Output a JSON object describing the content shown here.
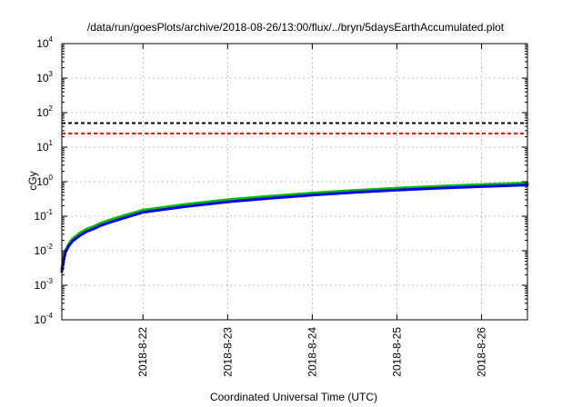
{
  "chart_data": {
    "type": "line",
    "title": "/data/run/goesPlots/archive/2018-08-26/13:00/flux/../bryn/5daysEarthAccumulated.plot",
    "xlabel": "Coordinated Universal Time (UTC)",
    "ylabel": "cGy",
    "x_type": "date",
    "xlim": [
      "2018-08-21T01:00",
      "2018-08-26T13:00"
    ],
    "x_ticks": [
      "2018-8-22",
      "2018-8-23",
      "2018-8-24",
      "2018-8-25",
      "2018-8-26"
    ],
    "y_scale": "log",
    "ylim": [
      0.0001,
      10000
    ],
    "y_ticks": [
      {
        "base": "10",
        "exp": "-4"
      },
      {
        "base": "10",
        "exp": "-3"
      },
      {
        "base": "10",
        "exp": "-2"
      },
      {
        "base": "10",
        "exp": "-1"
      },
      {
        "base": "10",
        "exp": "0"
      },
      {
        "base": "10",
        "exp": "1"
      },
      {
        "base": "10",
        "exp": "2"
      },
      {
        "base": "10",
        "exp": "3"
      },
      {
        "base": "10",
        "exp": "4"
      }
    ],
    "grid": true,
    "reference_lines": [
      {
        "y": 50,
        "color": "#000000",
        "style": "dashed"
      },
      {
        "y": 25,
        "color": "#ff0000",
        "style": "dashed"
      }
    ],
    "series": [
      {
        "color": "#00c000",
        "x": [
          "2018-08-21T01:00",
          "2018-08-21T01:30",
          "2018-08-21T02:00",
          "2018-08-21T03:00",
          "2018-08-21T04:00",
          "2018-08-21T06:00",
          "2018-08-21T08:00",
          "2018-08-21T10:00",
          "2018-08-21T12:00",
          "2018-08-21T15:00",
          "2018-08-21T18:00",
          "2018-08-22T00:00",
          "2018-08-22T12:00",
          "2018-08-23T00:00",
          "2018-08-23T12:00",
          "2018-08-24T00:00",
          "2018-08-24T12:00",
          "2018-08-25T00:00",
          "2018-08-25T12:00",
          "2018-08-26T00:00",
          "2018-08-26T13:00"
        ],
        "y": [
          0.003,
          0.006,
          0.01,
          0.016,
          0.022,
          0.032,
          0.042,
          0.05,
          0.063,
          0.08,
          0.1,
          0.15,
          0.22,
          0.3,
          0.38,
          0.47,
          0.56,
          0.65,
          0.74,
          0.83,
          0.92
        ]
      },
      {
        "color": "#0000ff",
        "x": [
          "2018-08-21T01:00",
          "2018-08-21T01:30",
          "2018-08-21T02:00",
          "2018-08-21T03:00",
          "2018-08-21T04:00",
          "2018-08-21T06:00",
          "2018-08-21T08:00",
          "2018-08-21T10:00",
          "2018-08-21T12:00",
          "2018-08-21T15:00",
          "2018-08-21T18:00",
          "2018-08-22T00:00",
          "2018-08-22T12:00",
          "2018-08-23T00:00",
          "2018-08-23T12:00",
          "2018-08-24T00:00",
          "2018-08-24T12:00",
          "2018-08-25T00:00",
          "2018-08-25T12:00",
          "2018-08-26T00:00",
          "2018-08-26T13:00"
        ],
        "y": [
          0.0025,
          0.005,
          0.009,
          0.014,
          0.019,
          0.027,
          0.036,
          0.043,
          0.054,
          0.068,
          0.085,
          0.13,
          0.19,
          0.26,
          0.33,
          0.41,
          0.49,
          0.57,
          0.65,
          0.72,
          0.8
        ]
      }
    ]
  }
}
